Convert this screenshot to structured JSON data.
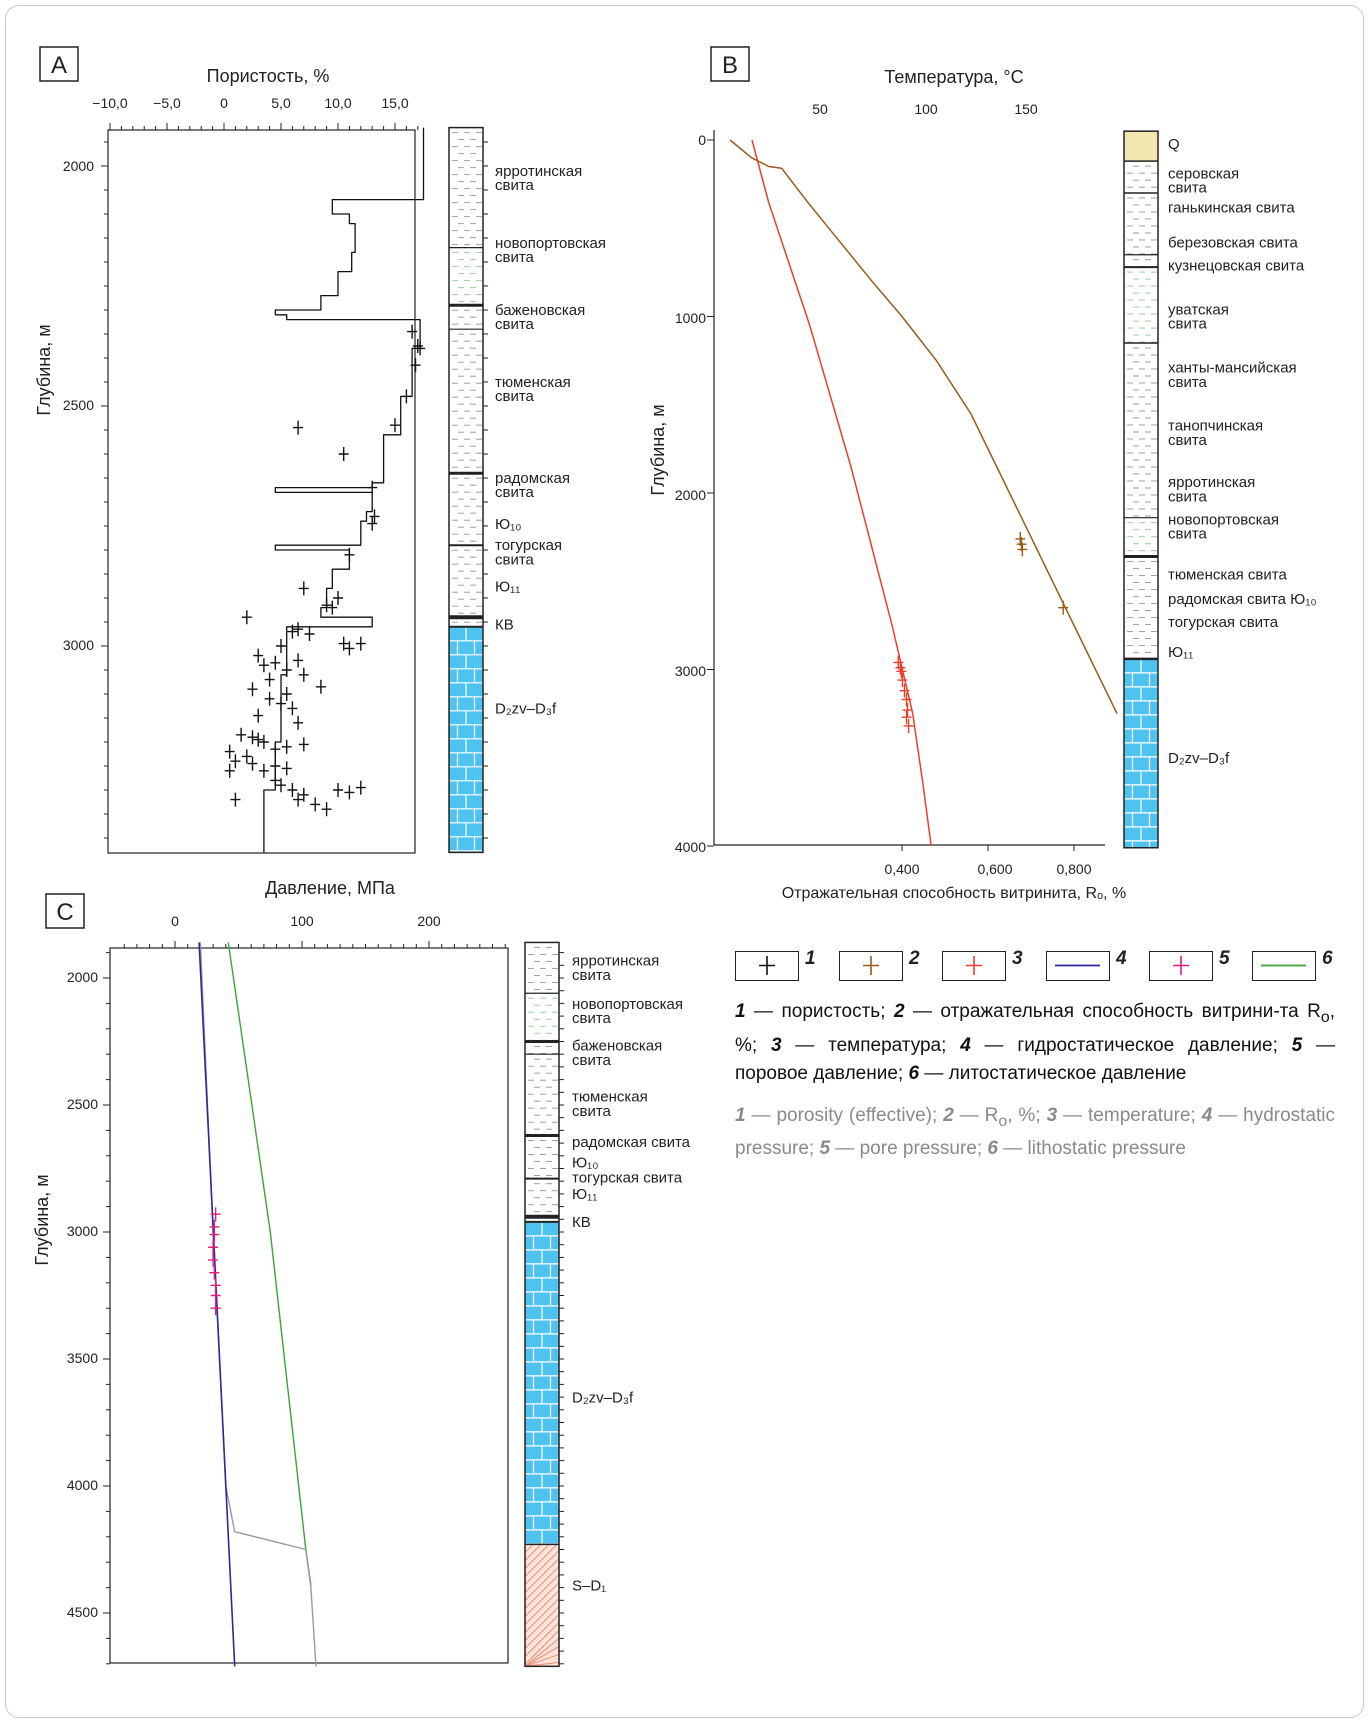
{
  "panels": {
    "A": {
      "label": "A",
      "title": "Пористость, %",
      "ylabel": "Глубина, м",
      "x_ticks": [
        "−10,0",
        "−5,0",
        "0",
        "5,0",
        "10,0",
        "15,0"
      ],
      "y_ticks": [
        "2000",
        "2500",
        "3000"
      ],
      "strat_labels": [
        {
          "text": "ярротинская\nсвита",
          "depth": 2025
        },
        {
          "text": "новопортовская\nсвита",
          "depth": 2175
        },
        {
          "text": "баженовская\nсвита",
          "depth": 2315
        },
        {
          "text": "тюменская\nсвита",
          "depth": 2465
        },
        {
          "text": "радомская\nсвита",
          "depth": 2665
        },
        {
          "text": "Ю₁₀",
          "depth": 2745
        },
        {
          "text": "тогурская\nсвита",
          "depth": 2805
        },
        {
          "text": "Ю₁₁",
          "depth": 2875
        },
        {
          "text": "КВ",
          "depth": 2955
        },
        {
          "text": "D₂zv–D₃f",
          "depth": 3130
        }
      ]
    },
    "B": {
      "label": "B",
      "title": "Температура, °С",
      "xlabel": "Отражательная способность  витринита, Rₒ, %",
      "ylabel": "Глубина, м",
      "top_ticks": [
        "50",
        "100",
        "150"
      ],
      "bottom_ticks": [
        "0,400",
        "0,600",
        "0,800"
      ],
      "y_ticks": [
        "0",
        "1000",
        "2000",
        "3000",
        "4000"
      ],
      "strat_labels": [
        {
          "text": "Q",
          "depth": 20
        },
        {
          "text": "серовская\nсвита",
          "depth": 230
        },
        {
          "text": "ганькинская свита",
          "depth": 380
        },
        {
          "text": "березовская свита",
          "depth": 580
        },
        {
          "text": "кузнецовская свита",
          "depth": 710
        },
        {
          "text": "уватская\nсвита",
          "depth": 1000
        },
        {
          "text": "ханты-мансийская\nсвита",
          "depth": 1330
        },
        {
          "text": "танопчинская\nсвита",
          "depth": 1660
        },
        {
          "text": "ярротинская\nсвита",
          "depth": 1980
        },
        {
          "text": "новопортовская\nсвита",
          "depth": 2190
        },
        {
          "text": "тюменская свита",
          "depth": 2460
        },
        {
          "text": "радомская свита Ю₁₀",
          "depth": 2600
        },
        {
          "text": "тогурская свита",
          "depth": 2730
        },
        {
          "text": "Ю₁₁",
          "depth": 2900
        },
        {
          "text": "D₂zv–D₃f",
          "depth": 3500
        }
      ]
    },
    "C": {
      "label": "C",
      "title": "Давление, МПа",
      "ylabel": "Глубина, м",
      "x_ticks": [
        "0",
        "100",
        "200"
      ],
      "y_ticks": [
        "2000",
        "2500",
        "3000",
        "3500",
        "4000",
        "4500"
      ],
      "strat_labels": [
        {
          "text": "ярротинская\nсвита",
          "depth": 1960
        },
        {
          "text": "новопортовская\nсвита",
          "depth": 2130
        },
        {
          "text": "баженовская\nсвита",
          "depth": 2295
        },
        {
          "text": "тюменская\nсвита",
          "depth": 2495
        },
        {
          "text": "радомская свита",
          "depth": 2645
        },
        {
          "text": "Ю₁₀",
          "depth": 2725
        },
        {
          "text": "тогурская свита",
          "depth": 2785
        },
        {
          "text": "Ю₁₁",
          "depth": 2850
        },
        {
          "text": "КВ",
          "depth": 2960
        },
        {
          "text": "D₂zv–D₃f",
          "depth": 3650
        },
        {
          "text": "S–D₁",
          "depth": 4390
        }
      ]
    }
  },
  "legend": {
    "items": [
      {
        "num": "1",
        "color": "#111111",
        "type": "cross"
      },
      {
        "num": "2",
        "color": "#9a5a1a",
        "type": "cross"
      },
      {
        "num": "3",
        "color": "#e8412a",
        "type": "cross"
      },
      {
        "num": "4",
        "color": "#2a2a9a",
        "type": "line"
      },
      {
        "num": "5",
        "color": "#e0207a",
        "type": "cross"
      },
      {
        "num": "6",
        "color": "#3aa53a",
        "type": "line"
      }
    ],
    "ru": {
      "n1": "1",
      "t1": " — пористость; ",
      "n2": "2",
      "t2": " — отражательная способность витрини-та R",
      "sub": "o",
      "t2b": ", %; ",
      "n3": "3",
      "t3": " — температура; ",
      "n4": "4",
      "t4": " — гидростатическое давление; ",
      "n5": "5",
      "t5": " — поровое давление; ",
      "n6": "6",
      "t6": " — литостатическое давление"
    },
    "en": {
      "n1": "1",
      "t1": " — porosity (effective); ",
      "n2": "2",
      "t2": " — R",
      "sub": "o",
      "t2b": ", %; ",
      "n3": "3",
      "t3": " — temperature; ",
      "n4": "4",
      "t4": " — hydrostatic pressure; ",
      "n5": "5",
      "t5": " — pore pressure; ",
      "n6": "6",
      "t6": " — lithostatic pressure"
    }
  },
  "colors": {
    "porosity": "#111111",
    "vitrinite": "#9a5a1a",
    "temperature": "#e8412a",
    "hydrostatic": "#2a2a9a",
    "pore": "#e0207a",
    "lithostatic": "#3aa53a",
    "pore_line": "#9a9a9a",
    "limestone": "#4fc3f0",
    "shale_dash": "#9aa0a8",
    "sand_green": "#9ccf9c",
    "quaternary": "#f3e7b0",
    "red_hatch": "#f08a70"
  },
  "chart_data": [
    {
      "panel": "A",
      "type": "line",
      "title": "Пористость, %",
      "xlabel": "Пористость, %",
      "ylabel": "Глубина, м",
      "xlim": [
        -12,
        19
      ],
      "ylim": [
        3430,
        1920
      ],
      "series": [
        {
          "kind": "line",
          "x": [
            17.5,
            17.5,
            9.5,
            9.5,
            11.0,
            11.0,
            11.5,
            11.5,
            11.2,
            11.2,
            10.0,
            10.0,
            8.5,
            8.5,
            4.5,
            4.5,
            5.5,
            5.5,
            17.2,
            17.2,
            16.5,
            16.5,
            15.5,
            15.5,
            14.0,
            14.0,
            13.0,
            13.0,
            4.5,
            4.5,
            13.0,
            13.0,
            12.5,
            12.5,
            12.0,
            12.0,
            4.5,
            4.5,
            11.0,
            11.0,
            9.5,
            9.5,
            9.0,
            9.0,
            8.5,
            8.5,
            13.0,
            13.0,
            5.5,
            5.5,
            5.0,
            5.0,
            4.5,
            4.5,
            3.5,
            3.5
          ],
          "y": [
            1920,
            2070,
            2070,
            2100,
            2100,
            2120,
            2120,
            2180,
            2180,
            2220,
            2220,
            2270,
            2270,
            2300,
            2300,
            2310,
            2310,
            2320,
            2320,
            2380,
            2380,
            2480,
            2480,
            2560,
            2560,
            2660,
            2660,
            2670,
            2670,
            2680,
            2680,
            2720,
            2720,
            2740,
            2740,
            2790,
            2790,
            2800,
            2800,
            2840,
            2840,
            2880,
            2880,
            2920,
            2920,
            2940,
            2940,
            2960,
            2960,
            3060,
            3060,
            3200,
            3200,
            3300,
            3300,
            3430
          ]
        },
        {
          "kind": "points",
          "x": [
            16.5,
            17.0,
            17.2,
            16.8,
            16.0,
            15.0,
            6.5,
            10.5,
            13.0,
            13.2,
            13.0,
            11.0,
            10.0,
            7.0,
            9.0,
            9.5,
            2.0,
            6.5,
            6.0,
            5.0,
            7.5,
            10.5,
            11.0,
            12.0,
            3.0,
            3.5,
            4.5,
            5.5,
            6.5,
            7.0,
            8.5,
            2.5,
            4.0,
            5.0,
            6.0,
            6.5,
            1.5,
            2.5,
            3.0,
            3.5,
            0.5,
            1.0,
            2.0,
            2.5,
            3.5,
            4.5,
            5.5,
            0.5,
            4.5,
            5.0,
            6.0,
            7.0,
            10.0,
            11.0,
            12.0,
            1.0,
            6.5,
            8.0,
            9.0,
            4.5,
            5.5,
            7.0,
            3.0,
            5.5,
            4.0
          ],
          "y": [
            2345,
            2375,
            2380,
            2415,
            2480,
            2540,
            2545,
            2600,
            2670,
            2730,
            2745,
            2810,
            2900,
            2880,
            2915,
            2920,
            2940,
            2965,
            2970,
            3000,
            2975,
            2995,
            3005,
            2995,
            3020,
            3040,
            3035,
            3050,
            3030,
            3060,
            3085,
            3090,
            3110,
            3120,
            3130,
            3160,
            3185,
            3190,
            3195,
            3200,
            3220,
            3240,
            3230,
            3245,
            3260,
            3250,
            3255,
            3260,
            3280,
            3290,
            3300,
            3310,
            3300,
            3305,
            3295,
            3320,
            3320,
            3330,
            3340,
            3215,
            3210,
            3205,
            3145,
            3100,
            3070
          ]
        }
      ]
    },
    {
      "panel": "B",
      "type": "line",
      "title": "Температура, °С",
      "xlabel": "Отражательная способность  витринита, Rₒ, %",
      "ylabel": "Глубина, м",
      "ylim": [
        4000,
        -50
      ],
      "x_top_lim": [
        12,
        193
      ],
      "x_bottom_lim": [
        0.0,
        0.91
      ],
      "series": [
        {
          "name": "vitrinite",
          "kind": "line",
          "axis": "bottom",
          "x": [
            0.0,
            0.05,
            0.09,
            0.12,
            0.18,
            0.23,
            0.28,
            0.33,
            0.4,
            0.48,
            0.56,
            0.62,
            0.66,
            0.7,
            0.74,
            0.78,
            0.82,
            0.86,
            0.9
          ],
          "y": [
            0,
            100,
            150,
            160,
            350,
            500,
            650,
            800,
            1000,
            1250,
            1550,
            1850,
            2050,
            2250,
            2450,
            2650,
            2850,
            3050,
            3250
          ]
        },
        {
          "name": "temperature",
          "kind": "line",
          "axis": "top",
          "x": [
            17,
            25,
            35,
            45,
            55,
            65,
            75,
            85,
            95,
            100,
            104
          ],
          "y": [
            0,
            350,
            700,
            1050,
            1450,
            1850,
            2300,
            2750,
            3250,
            3650,
            4000
          ]
        },
        {
          "name": "vitrinite_points",
          "kind": "points",
          "axis": "bottom",
          "x": [
            0.675,
            0.678,
            0.68,
            0.775
          ],
          "y": [
            2260,
            2290,
            2320,
            2650
          ]
        },
        {
          "name": "temperature_points",
          "kind": "points",
          "axis": "top",
          "x": [
            88,
            89,
            89.5,
            90,
            91,
            92,
            92.5,
            92,
            93
          ],
          "y": [
            2960,
            2990,
            3010,
            3060,
            3120,
            3170,
            3230,
            3270,
            3320
          ]
        }
      ]
    },
    {
      "panel": "C",
      "type": "line",
      "title": "Давление, МПа",
      "xlabel": "Давление, МПа",
      "ylabel": "Глубина, м",
      "xlim": [
        -48,
        262
      ],
      "ylim": [
        4710,
        1860
      ],
      "series": [
        {
          "name": "hydrostatic",
          "kind": "line",
          "x": [
            19,
            47
          ],
          "y": [
            1860,
            4710
          ]
        },
        {
          "name": "pore",
          "kind": "line",
          "x": [
            20,
            30,
            40,
            47,
            103,
            107,
            111
          ],
          "y": [
            1860,
            3000,
            4000,
            4180,
            4250,
            4400,
            4710
          ]
        },
        {
          "name": "lithostatic",
          "kind": "line",
          "x": [
            42,
            75,
            103,
            107
          ],
          "y": [
            1860,
            3000,
            4250,
            4390
          ]
        },
        {
          "name": "pore_points",
          "kind": "points",
          "x": [
            32,
            31,
            31,
            30,
            30,
            31,
            32,
            32,
            32
          ],
          "y": [
            2930,
            2980,
            3010,
            3060,
            3110,
            3160,
            3210,
            3250,
            3300
          ]
        }
      ]
    }
  ]
}
